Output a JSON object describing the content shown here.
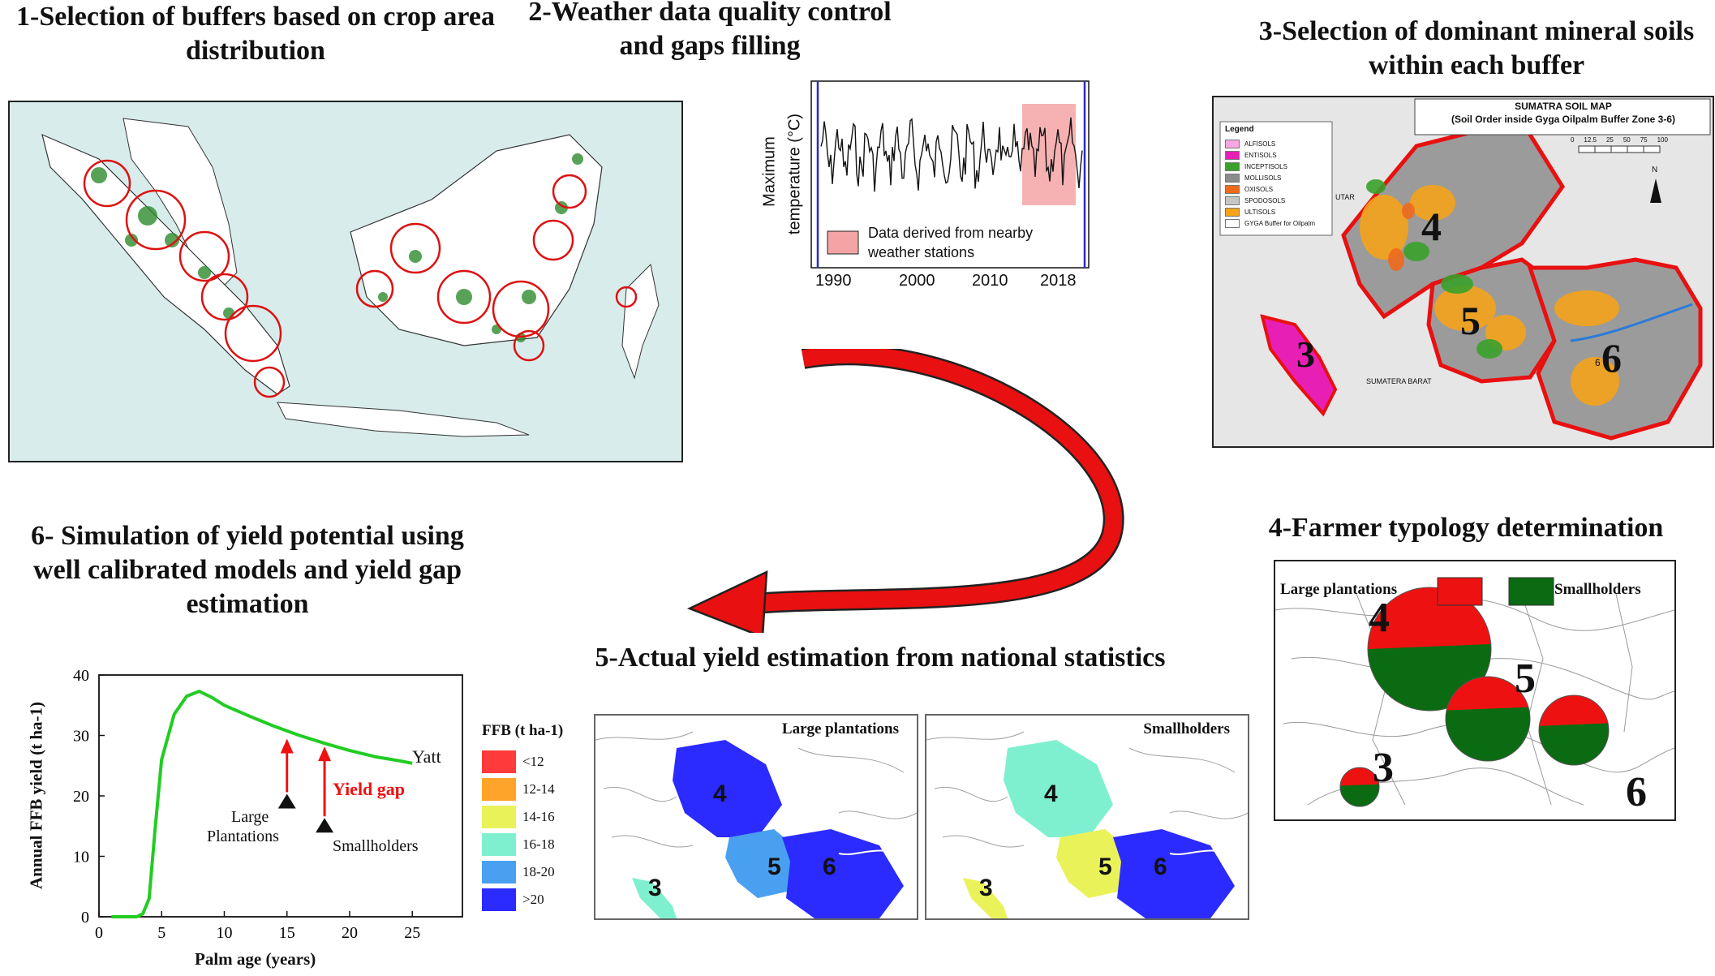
{
  "titles": {
    "t1": "1-Selection of buffers based on crop area distribution",
    "t2": "2-Weather data quality control and gaps filling",
    "t3": "3-Selection of dominant mineral soils within each buffer",
    "t4": "4-Farmer typology determination",
    "t5": "5-Actual yield estimation from national statistics",
    "t6": "6- Simulation of yield potential using well calibrated models and yield gap estimation"
  },
  "panel2": {
    "ylabel_1": "Maximum",
    "ylabel_2": "temperature (°C)",
    "legend_1": "Data derived from nearby",
    "legend_2": "weather stations",
    "xticks": [
      "1990",
      "2000",
      "2010",
      "2018"
    ]
  },
  "panel3": {
    "map_title": "SUMATRA SOIL MAP",
    "map_subtitle": "(Soil Order inside Gyga Oilpalm Buffer Zone 3-6)",
    "legend_title": "Legend",
    "legend_items": [
      {
        "label": "ALFISOLS",
        "color": "#f7a6e0"
      },
      {
        "label": "ENTISOLS",
        "color": "#e81fb5"
      },
      {
        "label": "INCEPTISOLS",
        "color": "#3aa12b"
      },
      {
        "label": "MOLLISOLS",
        "color": "#8c8c8c"
      },
      {
        "label": "OXISOLS",
        "color": "#f06a1c"
      },
      {
        "label": "SPODOSOLS",
        "color": "#c6c6c6"
      },
      {
        "label": "ULTISOLS",
        "color": "#f5a31a"
      },
      {
        "label": "GYGA Buffer for Oilpalm",
        "color": "#ffffff"
      }
    ],
    "scale_ticks": [
      "0",
      "12.5",
      "25",
      "50",
      "75",
      "100"
    ],
    "north": "N",
    "place_1": "SUMATERA BARAT",
    "place_2": "UTAR",
    "small_6": "6",
    "buffers": [
      "3",
      "4",
      "5",
      "6"
    ]
  },
  "panel4": {
    "legend_large": "Large plantations",
    "legend_small": "Smallholders",
    "colors": {
      "large": "#ee1111",
      "small": "#0a6b12"
    },
    "buffers": [
      "4",
      "5",
      "3",
      "6"
    ],
    "large_share": {
      "4": 0.48,
      "5": 0.38,
      "3": 0.45,
      "6": 0.42
    }
  },
  "panel5": {
    "legend_title": "FFB (t ha-1)",
    "legend_items": [
      {
        "label": "<12",
        "color": "#ff3a3a"
      },
      {
        "label": "12-14",
        "color": "#ffa42a"
      },
      {
        "label": "14-16",
        "color": "#eaf25a"
      },
      {
        "label": "16-18",
        "color": "#7ff0cf"
      },
      {
        "label": "18-20",
        "color": "#4aa0f0"
      },
      {
        "label": ">20",
        "color": "#2b2bff"
      }
    ],
    "map_a_title": "Large plantations",
    "map_b_title": "Smallholders",
    "buffers": [
      "4",
      "5",
      "6",
      "3"
    ],
    "map_a_classes": {
      "4": ">20",
      "5": "18-20",
      "6": ">20",
      "3": "16-18"
    },
    "map_b_classes": {
      "4": "16-18",
      "5": "14-16",
      "6": ">20",
      "3": "14-16"
    }
  },
  "panel6": {
    "ylabel": "Annual FFB yield (t ha-1)",
    "xlabel": "Palm age (years)",
    "yticks": [
      "0",
      "10",
      "20",
      "30",
      "40"
    ],
    "xticks": [
      "0",
      "5",
      "10",
      "15",
      "20",
      "25"
    ],
    "yatt_label": "Yatt",
    "yield_gap_label": "Yield gap",
    "large_label_1": "Large",
    "large_label_2": "Plantations",
    "small_label": "Smallholders",
    "curve_color": "#22cc22",
    "arrow_color": "#ee1111"
  },
  "chart_data": {
    "type": "line",
    "xlabel": "Palm age (years)",
    "ylabel": "Annual FFB yield (t ha-1)",
    "xlim": [
      0,
      29
    ],
    "ylim": [
      0,
      40
    ],
    "series": [
      {
        "name": "Yatt",
        "x": [
          1,
          2,
          3,
          3.5,
          4,
          4.5,
          5,
          6,
          7,
          8,
          9,
          10,
          12,
          14,
          16,
          18,
          20,
          22,
          24,
          25
        ],
        "y": [
          0,
          0,
          0,
          0.5,
          3,
          15,
          26,
          33.5,
          36.5,
          37.3,
          36.3,
          35,
          33.2,
          31.5,
          30,
          28.7,
          27.5,
          26.5,
          25.8,
          25.4
        ]
      }
    ],
    "markers": [
      {
        "name": "Large Plantations",
        "x": 15,
        "y": 19
      },
      {
        "name": "Smallholders",
        "x": 18,
        "y": 15
      }
    ],
    "grid": false
  }
}
